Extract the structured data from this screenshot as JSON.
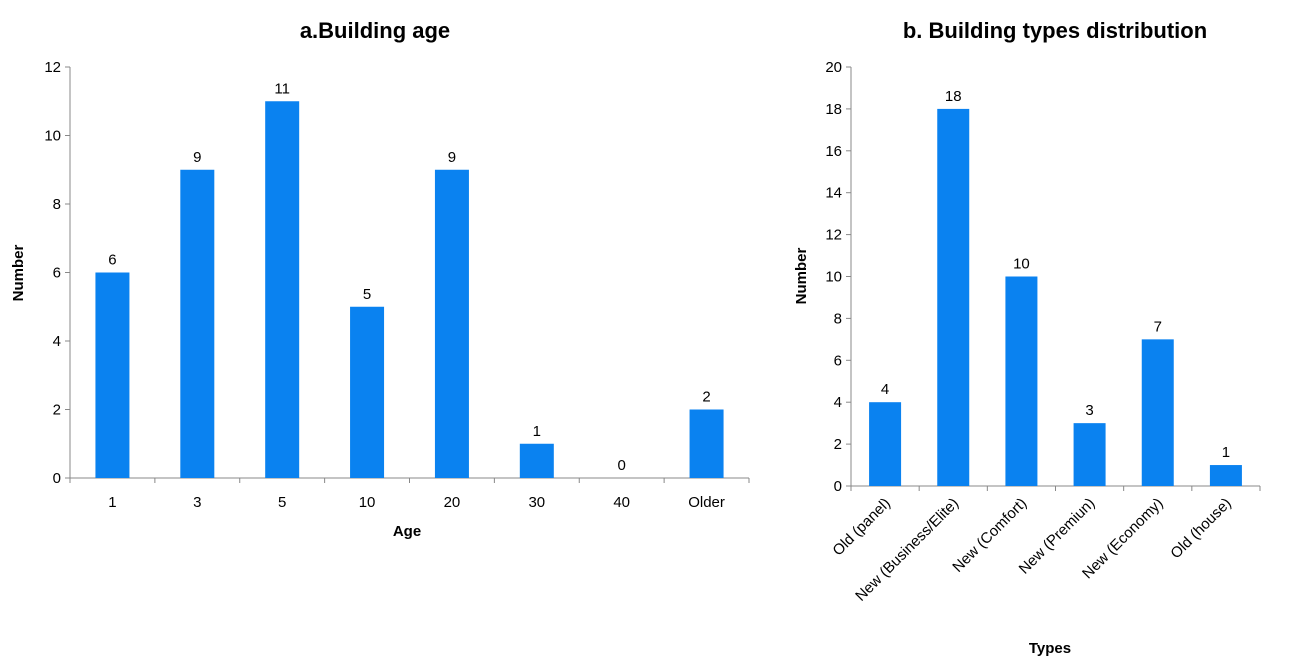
{
  "bar_color": "#0a82f0",
  "chart_data": [
    {
      "type": "bar",
      "title": "a.Building age",
      "xlabel": "Age",
      "ylabel": "Number",
      "categories": [
        "1",
        "3",
        "5",
        "10",
        "20",
        "30",
        "40",
        "Older"
      ],
      "values": [
        6,
        9,
        11,
        5,
        9,
        1,
        0,
        2
      ],
      "data_labels": [
        "6",
        "9",
        "11",
        "5",
        "9",
        "1",
        "0",
        "2"
      ],
      "ylim": [
        0,
        12
      ],
      "yticks": [
        "0",
        "2",
        "4",
        "6",
        "8",
        "10",
        "12"
      ],
      "grid": false,
      "legend": "none"
    },
    {
      "type": "bar",
      "title": "b. Building types distribution",
      "xlabel": "Types",
      "ylabel": "Number",
      "categories": [
        "Old (panel)",
        "New (Business/Elite)",
        "New (Comfort)",
        "New (Premiun)",
        "New (Economy)",
        "Old (house)"
      ],
      "values": [
        4,
        18,
        10,
        3,
        7,
        1
      ],
      "data_labels": [
        "4",
        "18",
        "10",
        "3",
        "7",
        "1"
      ],
      "ylim": [
        0,
        20
      ],
      "yticks": [
        "0",
        "2",
        "4",
        "6",
        "8",
        "10",
        "12",
        "14",
        "16",
        "18",
        "20"
      ],
      "grid": false,
      "legend": "none"
    }
  ]
}
